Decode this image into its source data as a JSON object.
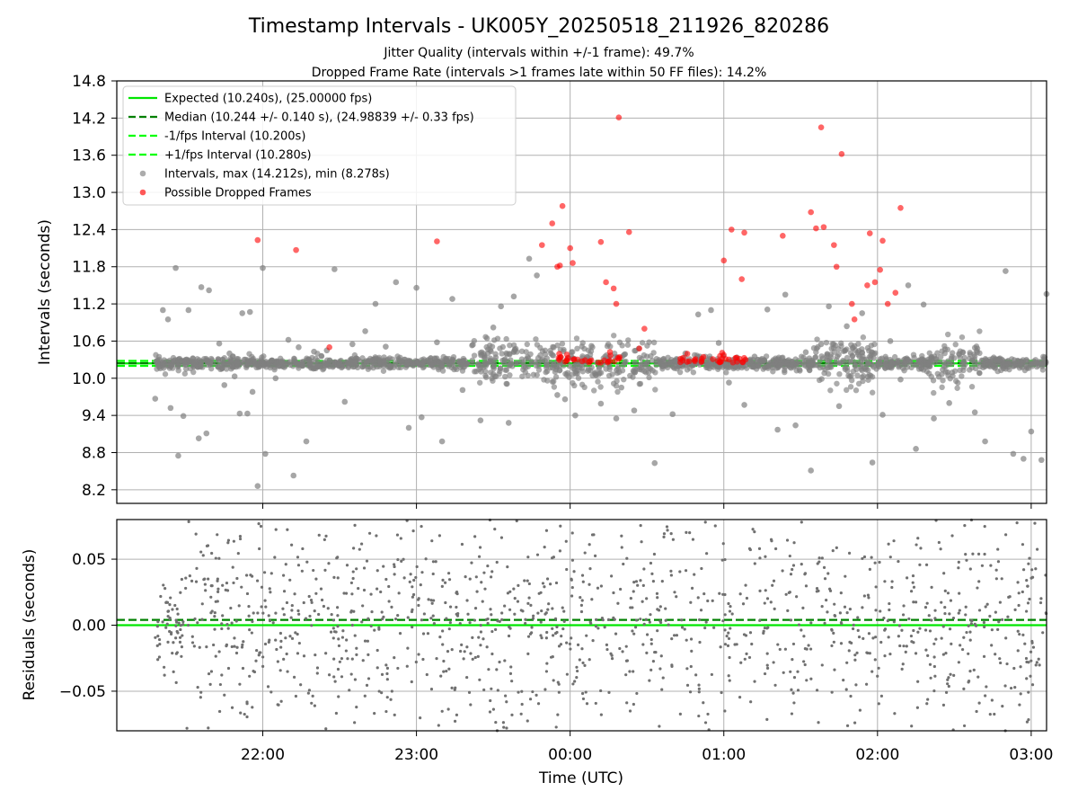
{
  "chart_data": {
    "type": "scatter",
    "title": "Timestamp Intervals - UK005Y_20250518_211926_820286",
    "subtitle_lines": [
      "Jitter Quality (intervals within +/-1 frame): 49.7%",
      "Dropped Frame Rate (intervals >1 frames late within 50 FF files): 14.2%"
    ],
    "xlabel": "Time (UTC)",
    "x_range": [
      "21:03",
      "03:06"
    ],
    "x_ticks": [
      "22:00",
      "23:00",
      "00:00",
      "01:00",
      "02:00",
      "03:00"
    ],
    "grid": true,
    "panels": [
      {
        "ylabel": "Intervals (seconds)",
        "ylim": [
          7.98,
          14.8
        ],
        "y_ticks": [
          "8.2",
          "8.8",
          "9.4",
          "10.0",
          "10.6",
          "11.2",
          "11.8",
          "12.4",
          "13.0",
          "13.6",
          "14.2",
          "14.8"
        ],
        "legend_position": "upper-left",
        "series": [
          {
            "name": "Expected (10.240s), (25.00000 fps)",
            "kind": "hline",
            "y": 10.24,
            "style": "solid",
            "color": "#00e600"
          },
          {
            "name": "Median (10.244 +/- 0.140 s), (24.98839 +/- 0.33 fps)",
            "kind": "hline",
            "y": 10.244,
            "style": "dashed",
            "color": "#008000"
          },
          {
            "name": "-1/fps Interval (10.200s)",
            "kind": "hline",
            "y": 10.2,
            "style": "dashed",
            "color": "#00ff00"
          },
          {
            "name": "+1/fps Interval (10.280s)",
            "kind": "hline",
            "y": 10.28,
            "style": "dashed",
            "color": "#00ff00"
          },
          {
            "name": "Intervals, max (14.212s), min (8.278s)",
            "kind": "scatter",
            "color": "#808080",
            "points": [
              [
                "21:18",
                9.67
              ],
              [
                "21:21",
                11.1
              ],
              [
                "21:23",
                10.95
              ],
              [
                "21:24",
                9.52
              ],
              [
                "21:26",
                11.78
              ],
              [
                "21:27",
                8.75
              ],
              [
                "21:29",
                9.39
              ],
              [
                "21:31",
                11.1
              ],
              [
                "21:35",
                9.03
              ],
              [
                "21:36",
                11.47
              ],
              [
                "21:38",
                9.11
              ],
              [
                "21:39",
                11.42
              ],
              [
                "21:43",
                10.56
              ],
              [
                "21:45",
                9.89
              ],
              [
                "21:47",
                10.4
              ],
              [
                "21:49",
                10.03
              ],
              [
                "21:51",
                9.43
              ],
              [
                "21:52",
                11.05
              ],
              [
                "21:54",
                9.43
              ],
              [
                "21:55",
                11.07
              ],
              [
                "21:56",
                9.78
              ],
              [
                "21:58",
                8.26
              ],
              [
                "22:00",
                11.78
              ],
              [
                "22:01",
                8.78
              ],
              [
                "22:05",
                10.0
              ],
              [
                "22:10",
                10.62
              ],
              [
                "22:12",
                8.43
              ],
              [
                "22:14",
                10.5
              ],
              [
                "22:17",
                8.98
              ],
              [
                "22:20",
                10.43
              ],
              [
                "22:25",
                10.45
              ],
              [
                "22:28",
                11.76
              ],
              [
                "22:32",
                9.62
              ],
              [
                "22:35",
                10.55
              ],
              [
                "22:40",
                10.76
              ],
              [
                "22:44",
                11.2
              ],
              [
                "22:48",
                10.51
              ],
              [
                "22:52",
                11.55
              ],
              [
                "22:57",
                9.2
              ],
              [
                "23:00",
                11.46
              ],
              [
                "23:02",
                9.37
              ],
              [
                "23:08",
                10.58
              ],
              [
                "23:10",
                8.98
              ],
              [
                "23:14",
                11.28
              ],
              [
                "23:18",
                9.81
              ],
              [
                "23:22",
                10.54
              ],
              [
                "23:25",
                9.32
              ],
              [
                "23:30",
                10.82
              ],
              [
                "23:33",
                11.16
              ],
              [
                "23:36",
                9.28
              ],
              [
                "23:38",
                11.32
              ],
              [
                "23:44",
                11.93
              ],
              [
                "23:47",
                11.66
              ],
              [
                "23:55",
                9.73
              ],
              [
                "23:58",
                9.66
              ],
              [
                "00:02",
                9.4
              ],
              [
                "00:07",
                10.12
              ],
              [
                "00:12",
                9.59
              ],
              [
                "00:18",
                9.35
              ],
              [
                "00:20",
                9.85
              ],
              [
                "00:25",
                9.48
              ],
              [
                "00:33",
                8.63
              ],
              [
                "00:40",
                9.42
              ],
              [
                "00:45",
                10.4
              ],
              [
                "00:50",
                11.03
              ],
              [
                "00:55",
                11.1
              ],
              [
                "00:58",
                10.57
              ],
              [
                "01:02",
                9.93
              ],
              [
                "01:08",
                9.57
              ],
              [
                "01:12",
                10.35
              ],
              [
                "01:17",
                11.11
              ],
              [
                "01:21",
                9.17
              ],
              [
                "01:24",
                11.35
              ],
              [
                "01:28",
                9.24
              ],
              [
                "01:32",
                10.42
              ],
              [
                "01:34",
                8.51
              ],
              [
                "01:38",
                10.55
              ],
              [
                "01:41",
                11.16
              ],
              [
                "01:45",
                9.55
              ],
              [
                "01:48",
                10.84
              ],
              [
                "01:51",
                10.52
              ],
              [
                "01:54",
                11.05
              ],
              [
                "01:58",
                8.64
              ],
              [
                "02:02",
                9.41
              ],
              [
                "02:05",
                10.6
              ],
              [
                "02:09",
                9.98
              ],
              [
                "02:12",
                11.5
              ],
              [
                "02:15",
                8.86
              ],
              [
                "02:18",
                11.19
              ],
              [
                "02:22",
                9.35
              ],
              [
                "02:28",
                9.6
              ],
              [
                "02:33",
                10.23
              ],
              [
                "02:38",
                9.45
              ],
              [
                "02:42",
                8.98
              ],
              [
                "02:46",
                10.31
              ],
              [
                "02:50",
                11.73
              ],
              [
                "02:53",
                8.78
              ],
              [
                "02:57",
                8.7
              ],
              [
                "03:00",
                9.14
              ],
              [
                "03:04",
                8.68
              ],
              [
                "03:06",
                11.36
              ]
            ]
          },
          {
            "name": "Possible Dropped Frames",
            "kind": "scatter",
            "color": "#ff0000",
            "points": [
              [
                "22:13",
                12.07
              ],
              [
                "21:58",
                12.23
              ],
              [
                "22:26",
                10.5
              ],
              [
                "23:08",
                12.21
              ],
              [
                "23:49",
                12.15
              ],
              [
                "23:53",
                12.5
              ],
              [
                "23:55",
                11.8
              ],
              [
                "23:56",
                11.82
              ],
              [
                "23:57",
                12.78
              ],
              [
                "24:00",
                12.1
              ],
              [
                "24:01",
                11.86
              ],
              [
                "24:12",
                12.2
              ],
              [
                "24:14",
                11.55
              ],
              [
                "24:17",
                11.45
              ],
              [
                "24:18",
                11.2
              ],
              [
                "24:23",
                12.36
              ],
              [
                "24:29",
                10.8
              ],
              [
                "24:27",
                10.48
              ],
              [
                "25:00",
                11.9
              ],
              [
                "25:03",
                12.4
              ],
              [
                "25:07",
                11.6
              ],
              [
                "25:08",
                12.35
              ],
              [
                "25:23",
                12.3
              ],
              [
                "25:34",
                12.68
              ],
              [
                "25:36",
                12.42
              ],
              [
                "25:39",
                12.44
              ],
              [
                "25:38",
                14.05
              ],
              [
                "25:43",
                12.15
              ],
              [
                "25:44",
                11.8
              ],
              [
                "25:46",
                13.62
              ],
              [
                "25:50",
                11.2
              ],
              [
                "25:51",
                10.95
              ],
              [
                "25:56",
                11.5
              ],
              [
                "25:57",
                12.34
              ],
              [
                "25:59",
                11.55
              ],
              [
                "26:01",
                11.75
              ],
              [
                "26:02",
                12.22
              ],
              [
                "26:04",
                11.2
              ],
              [
                "26:07",
                11.38
              ],
              [
                "26:09",
                12.75
              ],
              [
                "24:19",
                14.21
              ]
            ]
          }
        ]
      },
      {
        "ylabel": "Residuals (seconds)",
        "ylim": [
          -0.08,
          0.08
        ],
        "y_ticks": [
          "−0.05",
          "0.00",
          "0.05"
        ],
        "series": [
          {
            "name": "",
            "kind": "hline",
            "y": 0.0,
            "style": "solid",
            "color": "#00e600"
          },
          {
            "name": "",
            "kind": "hline",
            "y": 0.004,
            "style": "dashed",
            "color": "#008000"
          },
          {
            "name": "",
            "kind": "scatter",
            "color": "#808080",
            "points": []
          }
        ]
      }
    ]
  }
}
